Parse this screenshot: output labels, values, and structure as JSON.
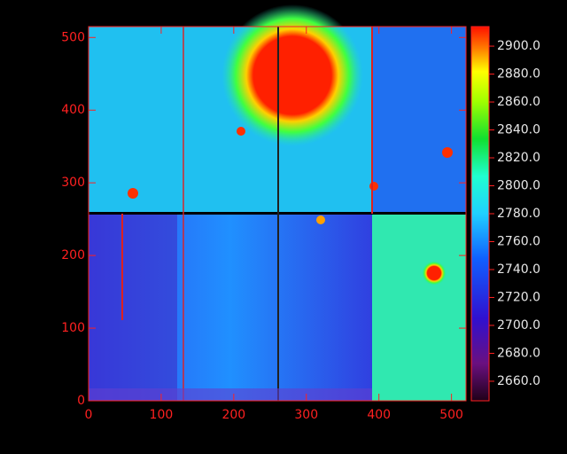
{
  "chart_data": {
    "type": "image",
    "xlim": [
      0,
      520
    ],
    "ylim": [
      0,
      515
    ],
    "xticks": [
      0,
      100,
      200,
      300,
      400,
      500
    ],
    "yticks": [
      0,
      100,
      200,
      300,
      400,
      500
    ],
    "axis_color": "#ff2020",
    "colorbar": {
      "lim": [
        2646,
        2914
      ],
      "ticks": [
        {
          "value": 2660,
          "label": "2660.0"
        },
        {
          "value": 2680,
          "label": "2680.0"
        },
        {
          "value": 2700,
          "label": "2700.0"
        },
        {
          "value": 2720,
          "label": "2720.0"
        },
        {
          "value": 2740,
          "label": "2740.0"
        },
        {
          "value": 2760,
          "label": "2760.0"
        },
        {
          "value": 2780,
          "label": "2780.0"
        },
        {
          "value": 2800,
          "label": "2800.0"
        },
        {
          "value": 2820,
          "label": "2820.0"
        },
        {
          "value": 2840,
          "label": "2840.0"
        },
        {
          "value": 2860,
          "label": "2860.0"
        },
        {
          "value": 2880,
          "label": "2880.0"
        },
        {
          "value": 2900,
          "label": "2900.0"
        }
      ]
    }
  }
}
